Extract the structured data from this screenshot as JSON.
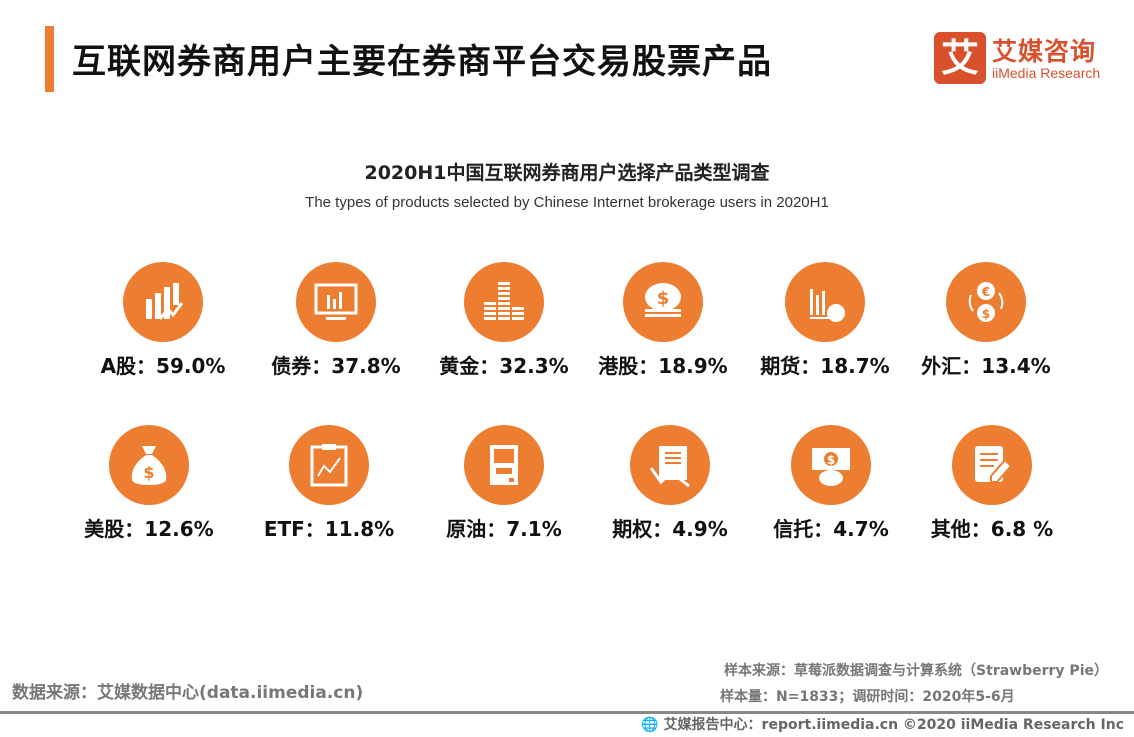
{
  "header": {
    "title": "互联网券商用户主要在券商平台交易股票产品"
  },
  "logo": {
    "mark": "艾",
    "cn": "艾媒咨询",
    "en": "iiMedia Research"
  },
  "chart": {
    "title": "2020H1中国互联网券商用户选择产品类型调查",
    "subtitle": "The types of products selected by Chinese Internet brokerage users in 2020H1"
  },
  "items": [
    {
      "label": "A股：59.0%",
      "icon": "bar-chart-arrow-icon"
    },
    {
      "label": "债券：37.8%",
      "icon": "monitor-chart-icon"
    },
    {
      "label": "黄金：32.3%",
      "icon": "coin-stacks-icon"
    },
    {
      "label": "港股：18.9%",
      "icon": "dollar-coin-stack-icon"
    },
    {
      "label": "期货：18.7%",
      "icon": "chart-pie-icon"
    },
    {
      "label": "外汇：13.4%",
      "icon": "currency-exchange-icon"
    },
    {
      "label": "美股：12.6%",
      "icon": "money-bag-icon"
    },
    {
      "label": "ETF：11.8%",
      "icon": "clipboard-chart-icon"
    },
    {
      "label": "原油：7.1%",
      "icon": "oil-machine-icon"
    },
    {
      "label": "期权：4.9%",
      "icon": "document-chart-icon"
    },
    {
      "label": "信托：4.7%",
      "icon": "hand-money-icon"
    },
    {
      "label": "其他：6.8 %",
      "icon": "document-pen-icon"
    }
  ],
  "chart_data": {
    "type": "table",
    "title": "2020H1中国互联网券商用户选择产品类型调查",
    "subtitle": "The types of products selected by Chinese Internet brokerage users in 2020H1",
    "categories": [
      "A股",
      "债券",
      "黄金",
      "港股",
      "期货",
      "外汇",
      "美股",
      "ETF",
      "原油",
      "期权",
      "信托",
      "其他"
    ],
    "values": [
      59.0,
      37.8,
      32.3,
      18.9,
      18.7,
      13.4,
      12.6,
      11.8,
      7.1,
      4.9,
      4.7,
      6.8
    ],
    "unit": "%",
    "color": "#ED7D31"
  },
  "footer": {
    "source": "数据来源：艾媒数据中心(data.iimedia.cn)",
    "sample_source": "样本来源：草莓派数据调查与计算系统（Strawberry Pie）",
    "sample_size": "样本量：N=1833；调研时间：2020年5-6月",
    "bottom": "艾媒报告中心：report.iimedia.cn  ©2020  iiMedia Research  Inc"
  }
}
